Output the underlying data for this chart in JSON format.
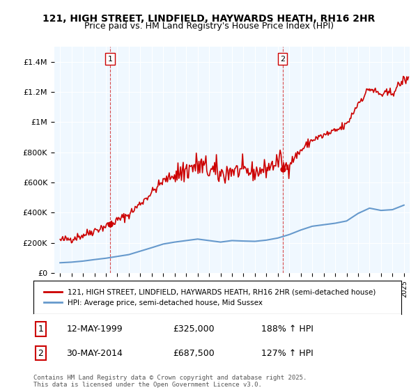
{
  "title_line1": "121, HIGH STREET, LINDFIELD, HAYWARDS HEATH, RH16 2HR",
  "title_line2": "Price paid vs. HM Land Registry's House Price Index (HPI)",
  "legend_line1": "121, HIGH STREET, LINDFIELD, HAYWARDS HEATH, RH16 2HR (semi-detached house)",
  "legend_line2": "HPI: Average price, semi-detached house, Mid Sussex",
  "footnote": "Contains HM Land Registry data © Crown copyright and database right 2025.\nThis data is licensed under the Open Government Licence v3.0.",
  "sale1_label": "1",
  "sale1_date": "12-MAY-1999",
  "sale1_price": "£325,000",
  "sale1_hpi": "188% ↑ HPI",
  "sale2_label": "2",
  "sale2_date": "30-MAY-2014",
  "sale2_price": "£687,500",
  "sale2_hpi": "127% ↑ HPI",
  "sale1_x": 1999.36,
  "sale1_y": 325000,
  "sale2_x": 2014.41,
  "sale2_y": 687500,
  "property_color": "#cc0000",
  "hpi_color": "#6699cc",
  "vline_color": "#cc0000",
  "background_color": "#f0f8ff",
  "ylim": [
    0,
    1500000
  ],
  "xlim_left": 1994.5,
  "xlim_right": 2025.5
}
